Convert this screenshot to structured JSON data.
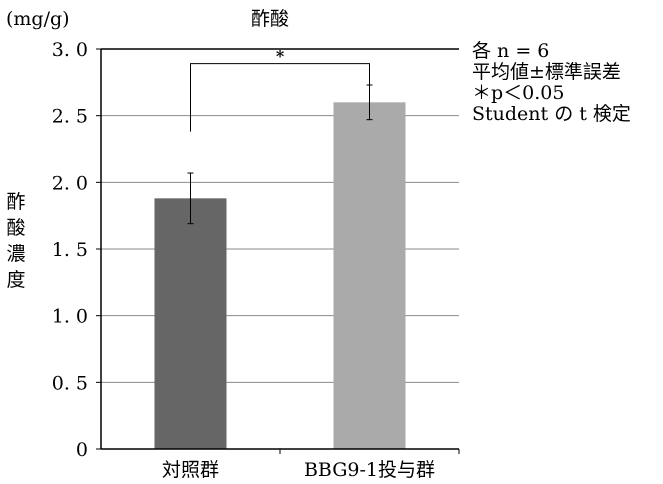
{
  "chart_data": {
    "type": "bar",
    "title": "酢酸",
    "unit": "(mg/g)",
    "ylabel": [
      "酢",
      "酸",
      "濃",
      "度"
    ],
    "categories": [
      "対照群",
      "BBG9-1投与群"
    ],
    "values": [
      1.88,
      2.6
    ],
    "error": [
      0.19,
      0.13
    ],
    "bar_colors": [
      "#666666",
      "#aaaaaa"
    ],
    "ylim": [
      0,
      3.0
    ],
    "yticks": [
      {
        "v": 0,
        "label": "0"
      },
      {
        "v": 0.5,
        "label": "0. 5"
      },
      {
        "v": 1.0,
        "label": "1. 0"
      },
      {
        "v": 1.5,
        "label": "1. 5"
      },
      {
        "v": 2.0,
        "label": "2. 0"
      },
      {
        "v": 2.5,
        "label": "2. 5"
      },
      {
        "v": 3.0,
        "label": "3. 0"
      }
    ],
    "grid": true,
    "significance": {
      "from": 0,
      "to": 1,
      "label": "*",
      "level_value": 2.89,
      "left_start": 2.38,
      "right_start": 2.71
    },
    "notes": [
      "各 n = 6",
      "平均値±標準誤差",
      "＊p＜0.05",
      "Student の t 検定"
    ]
  }
}
